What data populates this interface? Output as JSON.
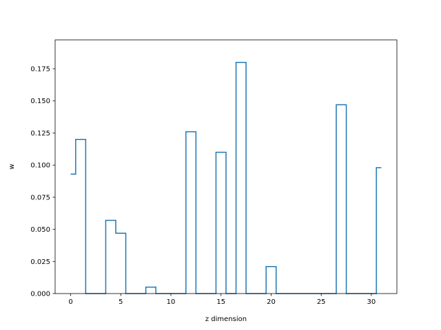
{
  "chart_data": {
    "type": "line",
    "style": "step-mid",
    "title": "",
    "xlabel": "z dimension",
    "ylabel": "w",
    "xlim": [
      -1.55,
      32.55
    ],
    "ylim": [
      0,
      0.1975
    ],
    "xticks": [
      0,
      5,
      10,
      15,
      20,
      25,
      30
    ],
    "xtick_labels": [
      "0",
      "5",
      "10",
      "15",
      "20",
      "25",
      "30"
    ],
    "yticks": [
      0,
      0.025,
      0.05,
      0.075,
      0.1,
      0.125,
      0.15,
      0.175
    ],
    "ytick_labels": [
      "0.000",
      "0.025",
      "0.050",
      "0.075",
      "0.100",
      "0.125",
      "0.150",
      "0.175"
    ],
    "grid": false,
    "series": [
      {
        "color": "#1f77b4",
        "x": [
          0,
          1,
          2,
          3,
          4,
          5,
          6,
          7,
          8,
          9,
          10,
          11,
          12,
          13,
          14,
          15,
          16,
          17,
          18,
          19,
          20,
          21,
          22,
          23,
          24,
          25,
          26,
          27,
          28,
          29,
          30,
          31
        ],
        "values": [
          0.093,
          0.12,
          0,
          0,
          0.057,
          0.047,
          0,
          0,
          0.005,
          0,
          0,
          0,
          0.126,
          0,
          0,
          0.11,
          0,
          0.18,
          0,
          0,
          0.021,
          0,
          0,
          0,
          0,
          0,
          0,
          0.147,
          0,
          0,
          0,
          0.098
        ]
      }
    ]
  }
}
